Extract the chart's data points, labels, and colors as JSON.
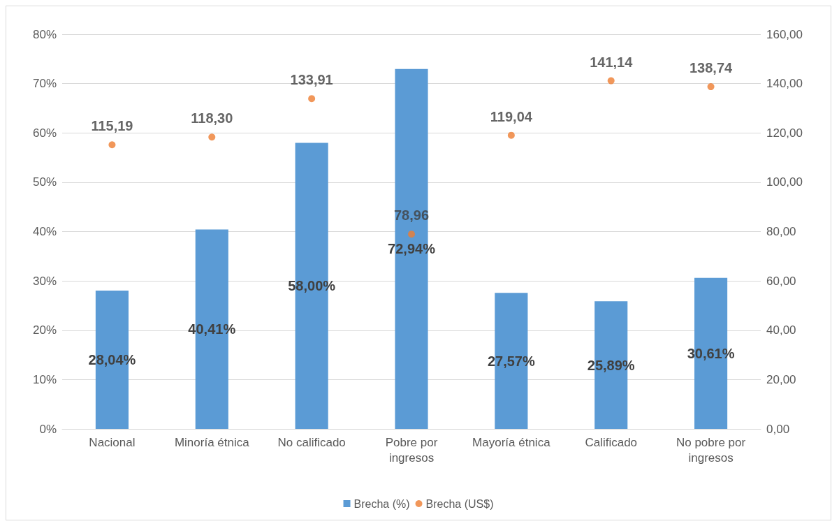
{
  "chart_data": {
    "type": "bar",
    "categories": [
      "Nacional",
      "Minoría étnica",
      "No calificado",
      "Pobre por\ningresos",
      "Mayoría étnica",
      "Calificado",
      "No pobre por\ningresos"
    ],
    "series": [
      {
        "name": "Brecha (%)",
        "color": "#5b9bd5",
        "values": [
          28.04,
          40.41,
          58.0,
          72.94,
          27.57,
          25.89,
          30.61
        ],
        "value_labels": [
          "28,04%",
          "40,41%",
          "58,00%",
          "72,94%",
          "27,57%",
          "25,89%",
          "30,61%"
        ]
      },
      {
        "name": "Brecha (US$)",
        "type": "scatter",
        "axis": "y2",
        "color": "#ed7d31",
        "marker": "circle",
        "values": [
          115.19,
          118.3,
          133.91,
          78.96,
          119.04,
          141.14,
          138.74
        ],
        "value_labels": [
          "115,19",
          "118,30",
          "133,91",
          "78,96",
          "119,04",
          "141,14",
          "138,74"
        ]
      }
    ],
    "ylim": [
      0,
      80
    ],
    "yticks": [
      {
        "value": 0,
        "label": "0%"
      },
      {
        "value": 10,
        "label": "10%"
      },
      {
        "value": 20,
        "label": "20%"
      },
      {
        "value": 30,
        "label": "30%"
      },
      {
        "value": 40,
        "label": "40%"
      },
      {
        "value": 50,
        "label": "50%"
      },
      {
        "value": 60,
        "label": "60%"
      },
      {
        "value": 70,
        "label": "70%"
      },
      {
        "value": 80,
        "label": "80%"
      }
    ],
    "y2lim": [
      0,
      160
    ],
    "y2ticks": [
      {
        "value": 0,
        "label": "0,00"
      },
      {
        "value": 20,
        "label": "20,00"
      },
      {
        "value": 40,
        "label": "40,00"
      },
      {
        "value": 60,
        "label": "60,00"
      },
      {
        "value": 80,
        "label": "80,00"
      },
      {
        "value": 100,
        "label": "100,00"
      },
      {
        "value": 120,
        "label": "120,00"
      },
      {
        "value": 140,
        "label": "140,00"
      },
      {
        "value": 160,
        "label": "160,00"
      }
    ],
    "grid": "y",
    "legend": "bottom"
  }
}
